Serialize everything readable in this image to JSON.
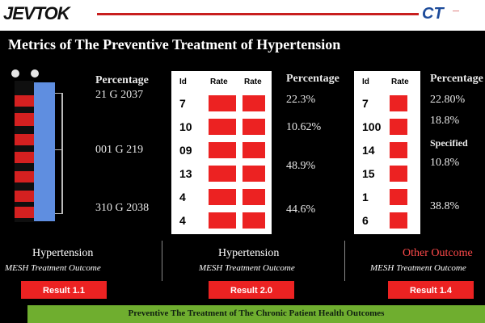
{
  "header": {
    "logo": "JEVTOK",
    "brand_mark": "CT",
    "brand_tag": "—",
    "title": "Metrics of The Preventive Treatment of Hypertension"
  },
  "left_column": {
    "labels": [
      "Percentage",
      "21 G 2037",
      "001 G 219",
      "310 G 2038"
    ]
  },
  "panel_a": {
    "headers": [
      "Id",
      "Rate",
      "Rate"
    ],
    "rows": [
      {
        "n": "7",
        "a": 1,
        "b": 1
      },
      {
        "n": "10",
        "a": 1,
        "b": 1
      },
      {
        "n": "09",
        "a": 1,
        "b": 1
      },
      {
        "n": "13",
        "a": 1,
        "b": 1
      },
      {
        "n": "4",
        "a": 1,
        "b": 1
      },
      {
        "n": "4",
        "a": 1,
        "b": 1
      }
    ]
  },
  "middle_values": {
    "header": "Percentage",
    "values": [
      "22.3%",
      "10.62%",
      "48.9%",
      "44.6%"
    ]
  },
  "panel_b": {
    "headers": [
      "Id",
      "Rate"
    ],
    "rows": [
      {
        "n": "7",
        "a": 1
      },
      {
        "n": "100",
        "a": 1
      },
      {
        "n": "14",
        "a": 1
      },
      {
        "n": "15",
        "a": 1
      },
      {
        "n": "1",
        "a": 1
      },
      {
        "n": "6",
        "a": 1
      }
    ]
  },
  "right_values": {
    "header": "Percentage",
    "values": [
      "22.80%",
      "18.8%",
      "Specified",
      "10.8%",
      "38.8%"
    ]
  },
  "footer": {
    "left_label": "Hypertension",
    "left_sub": "MESH Treatment Outcome",
    "mid_label": "Hypertension",
    "mid_sub": "MESH Treatment Outcome",
    "right_label": "Other Outcome",
    "right_sub": "MESH Treatment Outcome",
    "btn_left": "Result 1.1",
    "btn_mid": "Result 2.0",
    "btn_right": "Result 1.4"
  },
  "green_band": "Preventive The Treatment of The Chronic Patient Health Outcomes"
}
